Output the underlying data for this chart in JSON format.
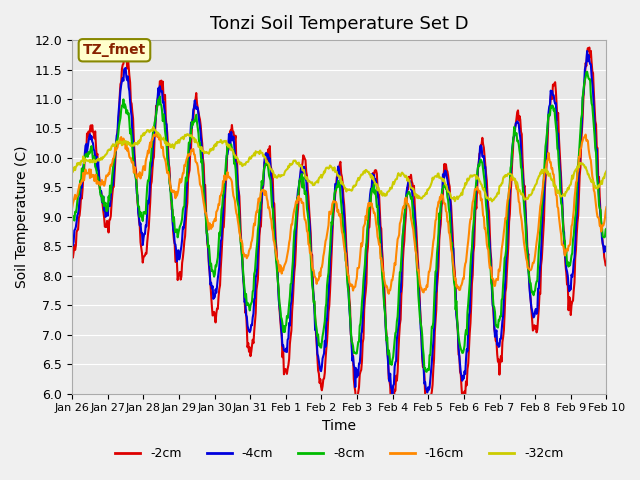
{
  "title": "Tonzi Soil Temperature Set D",
  "xlabel": "Time",
  "ylabel": "Soil Temperature (C)",
  "annotation": "TZ_fmet",
  "ylim": [
    6.0,
    12.0
  ],
  "yticks": [
    6.0,
    6.5,
    7.0,
    7.5,
    8.0,
    8.5,
    9.0,
    9.5,
    10.0,
    10.5,
    11.0,
    11.5,
    12.0
  ],
  "xtick_labels": [
    "Jan 26",
    "Jan 27",
    "Jan 28",
    "Jan 29",
    "Jan 30",
    "Jan 31",
    "Feb 1",
    "Feb 2",
    "Feb 3",
    "Feb 4",
    "Feb 5",
    "Feb 6",
    "Feb 7",
    "Feb 8",
    "Feb 9",
    "Feb 10"
  ],
  "legend_labels": [
    "-2cm",
    "-4cm",
    "-8cm",
    "-16cm",
    "-32cm"
  ],
  "line_colors": [
    "#dd0000",
    "#0000dd",
    "#00bb00",
    "#ff8800",
    "#cccc00"
  ],
  "fig_bg_color": "#f0f0f0",
  "plot_bg_color": "#e8e8e8",
  "annotation_bg": "#ffffcc",
  "annotation_border": "#888800",
  "annotation_text_color": "#882200",
  "title_fontsize": 13,
  "label_fontsize": 10,
  "tick_fontsize": 9,
  "n_days": 15,
  "pts_per_day": 48
}
